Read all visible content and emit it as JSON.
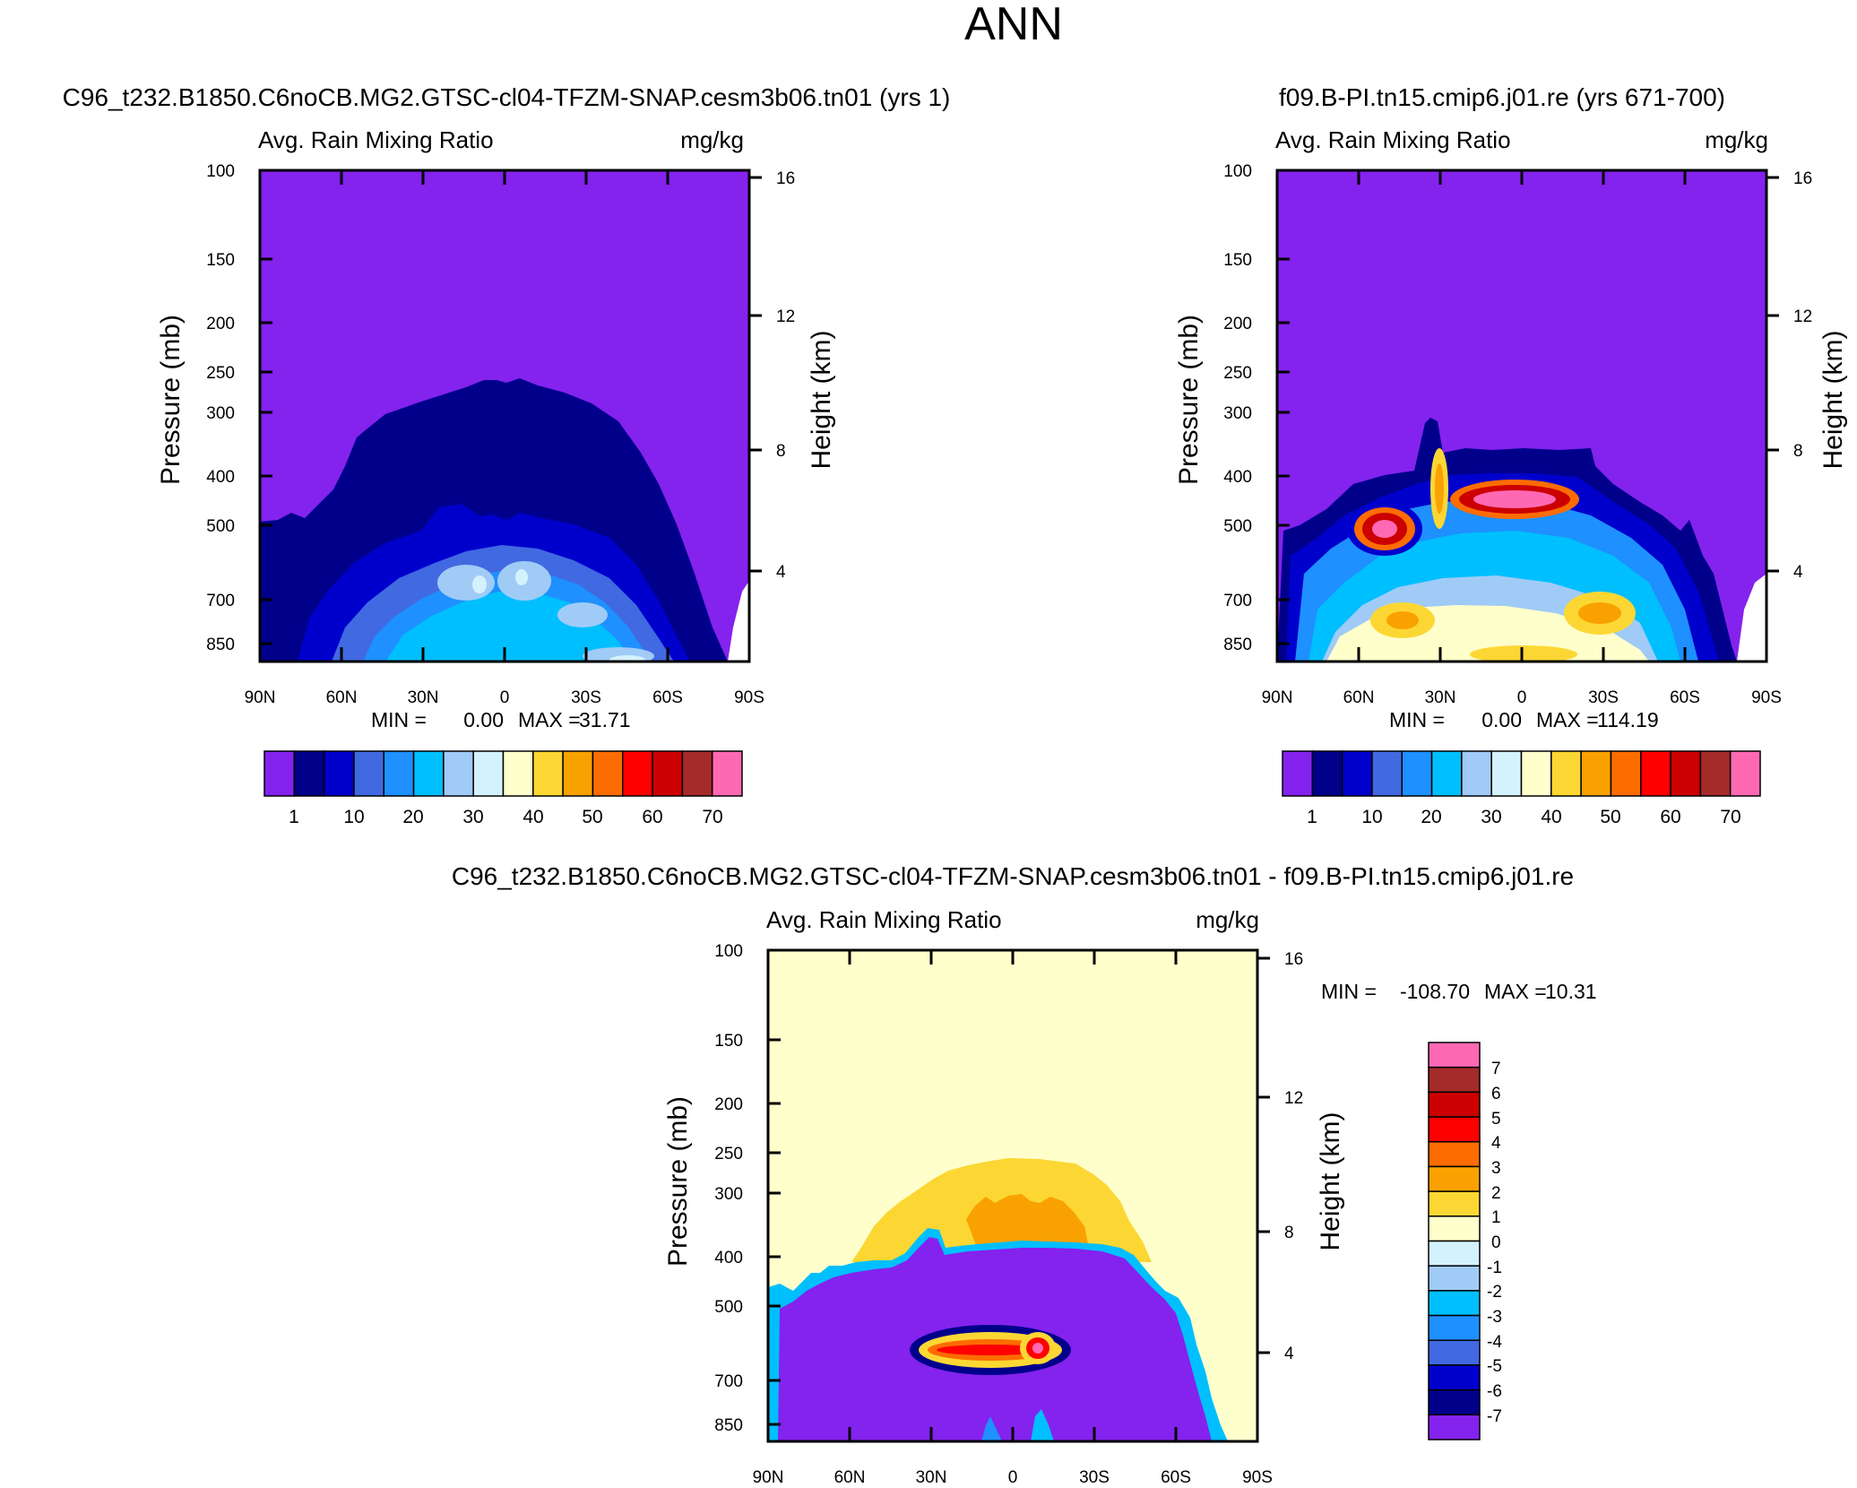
{
  "page_title": "ANN",
  "colors": {
    "purple": "#8422ee",
    "navy": "#00008b",
    "blue": "#0000cd",
    "royal": "#4169e1",
    "dodger": "#1e90ff",
    "deepsky": "#00bfff",
    "lightblue": "#a0cbf7",
    "paleblue": "#d4f2fd",
    "cream": "#ffffcc",
    "gold": "#fcd734",
    "orange": "#f9a100",
    "darkorange": "#fd6c00",
    "red": "#ff0000",
    "darkred": "#cc0000",
    "brown": "#a52a2a",
    "pink": "#ff69b4"
  },
  "chart_data": [
    {
      "id": "model",
      "type": "contour",
      "title": "C96_t232.B1850.C6noCB.MG2.GTSC-cl04-TFZM-SNAP.cesm3b06.tn01 (yrs 1)",
      "left_label": "Avg. Rain Mixing Ratio",
      "right_label": "mg/kg",
      "ylabel": "Pressure (mb)",
      "ylabel_right": "Height (km)",
      "x_ticks": [
        "90N",
        "60N",
        "30N",
        "0",
        "30S",
        "60S",
        "90S"
      ],
      "y_ticks": [
        "100",
        "150",
        "200",
        "250",
        "300",
        "400",
        "500",
        "700",
        "850"
      ],
      "y_ticks_right": [
        "16",
        "12",
        "8",
        "4"
      ],
      "ylim": [
        1000,
        100
      ],
      "stats": {
        "min_label": "MIN =",
        "min_value": "0.00",
        "max_label": "MAX =",
        "max_value": "31.71"
      },
      "colorbar_labels": [
        "1",
        "10",
        "20",
        "30",
        "40",
        "50",
        "60",
        "70"
      ],
      "colorbar_colors": [
        "#8422ee",
        "#00008b",
        "#0000cd",
        "#4169e1",
        "#1e90ff",
        "#00bfff",
        "#a0cbf7",
        "#d4f2fd",
        "#ffffcc",
        "#fcd734",
        "#f9a100",
        "#fd6c00",
        "#ff0000",
        "#cc0000",
        "#a52a2a",
        "#ff69b4"
      ]
    },
    {
      "id": "obs",
      "type": "contour",
      "title": "f09.B-PI.tn15.cmip6.j01.re (yrs 671-700)",
      "left_label": "Avg. Rain Mixing Ratio",
      "right_label": "mg/kg",
      "ylabel": "Pressure (mb)",
      "ylabel_right": "Height (km)",
      "x_ticks": [
        "90N",
        "60N",
        "30N",
        "0",
        "30S",
        "60S",
        "90S"
      ],
      "y_ticks": [
        "100",
        "150",
        "200",
        "250",
        "300",
        "400",
        "500",
        "700",
        "850"
      ],
      "y_ticks_right": [
        "16",
        "12",
        "8",
        "4"
      ],
      "ylim": [
        1000,
        100
      ],
      "stats": {
        "min_label": "MIN =",
        "min_value": "0.00",
        "max_label": "MAX =",
        "max_value": "114.19"
      },
      "colorbar_labels": [
        "1",
        "10",
        "20",
        "30",
        "40",
        "50",
        "60",
        "70"
      ],
      "colorbar_colors": [
        "#8422ee",
        "#00008b",
        "#0000cd",
        "#4169e1",
        "#1e90ff",
        "#00bfff",
        "#a0cbf7",
        "#d4f2fd",
        "#ffffcc",
        "#fcd734",
        "#f9a100",
        "#fd6c00",
        "#ff0000",
        "#cc0000",
        "#a52a2a",
        "#ff69b4"
      ]
    },
    {
      "id": "diff",
      "type": "contour",
      "title": "C96_t232.B1850.C6noCB.MG2.GTSC-cl04-TFZM-SNAP.cesm3b06.tn01 - f09.B-PI.tn15.cmip6.j01.re",
      "left_label": "Avg. Rain Mixing Ratio",
      "right_label": "mg/kg",
      "ylabel": "Pressure (mb)",
      "ylabel_right": "Height (km)",
      "x_ticks": [
        "90N",
        "60N",
        "30N",
        "0",
        "30S",
        "60S",
        "90S"
      ],
      "y_ticks": [
        "100",
        "150",
        "200",
        "250",
        "300",
        "400",
        "500",
        "700",
        "850"
      ],
      "y_ticks_right": [
        "16",
        "12",
        "8",
        "4"
      ],
      "ylim": [
        1000,
        100
      ],
      "stats": {
        "min_label": "MIN =",
        "min_value": "-108.70",
        "max_label": "MAX =",
        "max_value": "10.31"
      },
      "colorbar_labels": [
        "7",
        "6",
        "5",
        "4",
        "3",
        "2",
        "1",
        "0",
        "-1",
        "-2",
        "-3",
        "-4",
        "-5",
        "-6",
        "-7"
      ],
      "colorbar_colors": [
        "#ff69b4",
        "#a52a2a",
        "#cc0000",
        "#ff0000",
        "#fd6c00",
        "#f9a100",
        "#fcd734",
        "#ffffcc",
        "#d4f2fd",
        "#a0cbf7",
        "#00bfff",
        "#1e90ff",
        "#4169e1",
        "#0000cd",
        "#00008b",
        "#8422ee"
      ]
    }
  ]
}
